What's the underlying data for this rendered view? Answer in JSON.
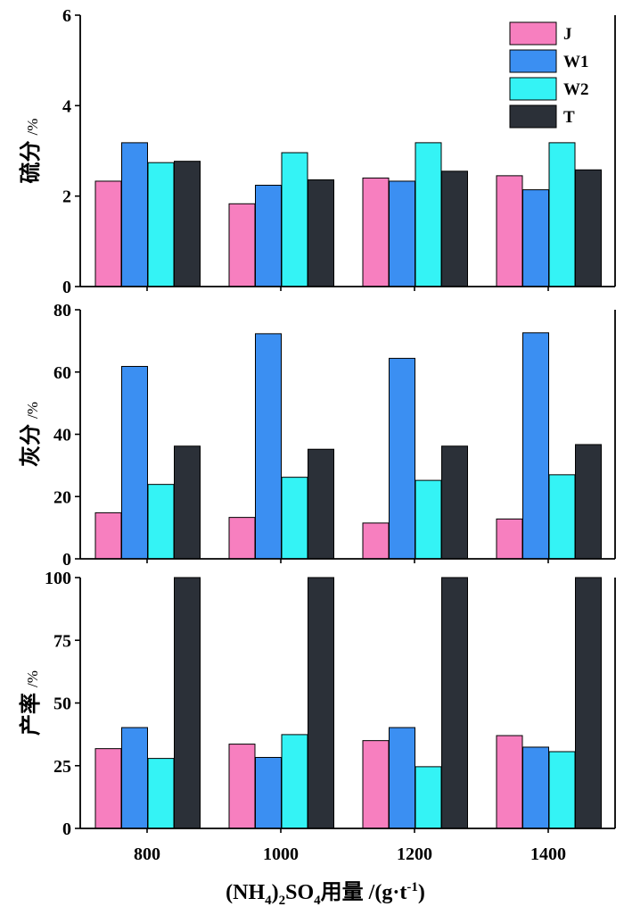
{
  "chart_data": {
    "type": "bar",
    "layout": "stacked-panels",
    "categories": [
      "800",
      "1000",
      "1200",
      "1400"
    ],
    "xlabel": {
      "prefix": "(NH",
      "sub1": "4",
      "mid1": ")",
      "sub2": "2",
      "mid2": "SO",
      "sub3": "4",
      "mid3": "用量 /(g·t",
      "sup": "-1",
      "suffix": ")"
    },
    "legend": {
      "placement": "top-right of top panel",
      "entries": [
        {
          "name": "J",
          "color": "#f77fbf"
        },
        {
          "name": "W1",
          "color": "#3b8ff2"
        },
        {
          "name": "W2",
          "color": "#34f3f5"
        },
        {
          "name": "T",
          "color": "#2b3038"
        }
      ]
    },
    "panels": [
      {
        "ylabel": "硫分",
        "yunit": "/%",
        "ylim": [
          0,
          6
        ],
        "yticks": [
          0,
          2,
          4,
          6
        ],
        "series": [
          {
            "name": "J",
            "values": [
              2.33,
              1.83,
              2.4,
              2.45
            ]
          },
          {
            "name": "W1",
            "values": [
              3.18,
              2.24,
              2.33,
              2.14
            ]
          },
          {
            "name": "W2",
            "values": [
              2.74,
              2.96,
              3.18,
              3.18
            ]
          },
          {
            "name": "T",
            "values": [
              2.77,
              2.36,
              2.55,
              2.58
            ]
          }
        ]
      },
      {
        "ylabel": "灰分",
        "yunit": "/%",
        "ylim": [
          0,
          80
        ],
        "yticks": [
          0,
          20,
          40,
          60,
          80
        ],
        "series": [
          {
            "name": "J",
            "values": [
              14.8,
              13.3,
              11.5,
              12.8
            ]
          },
          {
            "name": "W1",
            "values": [
              61.8,
              72.3,
              64.4,
              72.6
            ]
          },
          {
            "name": "W2",
            "values": [
              23.9,
              26.2,
              25.2,
              27.0
            ]
          },
          {
            "name": "T",
            "values": [
              36.2,
              35.2,
              36.2,
              36.7
            ]
          }
        ]
      },
      {
        "ylabel": "产率",
        "yunit": "/%",
        "ylim": [
          0,
          100
        ],
        "yticks": [
          0,
          25,
          50,
          75,
          100
        ],
        "series": [
          {
            "name": "J",
            "values": [
              31.8,
              33.6,
              35.0,
              37.0
            ]
          },
          {
            "name": "W1",
            "values": [
              40.2,
              28.3,
              40.2,
              32.4
            ]
          },
          {
            "name": "W2",
            "values": [
              27.9,
              37.4,
              24.6,
              30.6
            ]
          },
          {
            "name": "T",
            "values": [
              100,
              100,
              100,
              100
            ]
          }
        ]
      }
    ]
  }
}
